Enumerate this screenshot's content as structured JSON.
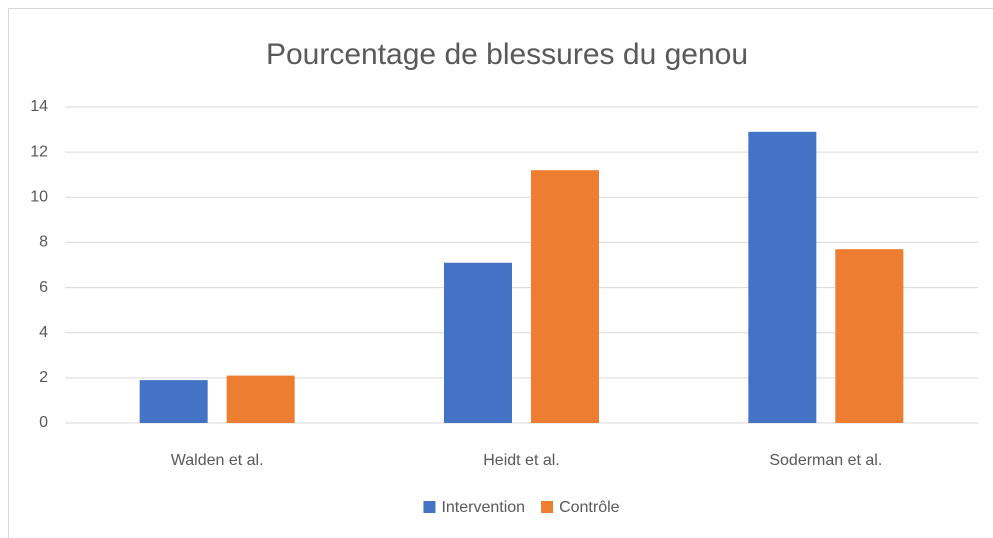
{
  "chart_data": {
    "type": "bar",
    "title": "Pourcentage de blessures du genou",
    "categories": [
      "Walden et al.",
      "Heidt et al.",
      "Soderman et al."
    ],
    "series": [
      {
        "name": "Intervention",
        "color": "#4472c4",
        "values": [
          1.9,
          7.1,
          12.9
        ]
      },
      {
        "name": "Contrôle",
        "color": "#ed7d31",
        "values": [
          2.1,
          11.2,
          7.7
        ]
      }
    ],
    "ylim": [
      0,
      14
    ],
    "yticks": [
      0,
      2,
      4,
      6,
      8,
      10,
      12,
      14
    ],
    "grid": true,
    "legend": "bottom"
  }
}
